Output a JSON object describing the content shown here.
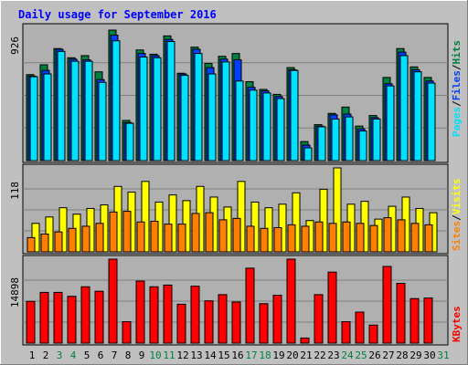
{
  "title": "Daily usage for September 2016",
  "colors": {
    "background": "#c0c0c0",
    "title": "#0000ff",
    "panel_fill": "#b0b0b0",
    "hits": "#008040",
    "files": "#0040ff",
    "pages": "#00e0ff",
    "visits": "#ffff00",
    "sites": "#ff8000",
    "kbytes": "#ff0000",
    "weekend_tick": "#008040",
    "weekday_tick": "#000000"
  },
  "chart_data": [
    {
      "type": "bar",
      "panel": "requests",
      "ymax_label": "926",
      "ymax": 926,
      "right_legend": [
        {
          "key": "pages",
          "text": "Pages"
        },
        {
          "key": "sep",
          "text": "/"
        },
        {
          "key": "files",
          "text": "Files"
        },
        {
          "key": "sep",
          "text": "/"
        },
        {
          "key": "hits",
          "text": "Hits"
        }
      ],
      "categories": [
        "1",
        "2",
        "3",
        "4",
        "5",
        "6",
        "7",
        "8",
        "9",
        "10",
        "11",
        "12",
        "13",
        "14",
        "15",
        "16",
        "17",
        "18",
        "19",
        "20",
        "21",
        "22",
        "23",
        "24",
        "25",
        "26",
        "27",
        "28",
        "29",
        "30",
        "31"
      ],
      "series": [
        {
          "key": "hits",
          "values": [
            610,
            680,
            795,
            730,
            745,
            630,
            926,
            285,
            785,
            755,
            885,
            620,
            805,
            690,
            740,
            760,
            560,
            505,
            470,
            660,
            135,
            255,
            335,
            380,
            245,
            320,
            590,
            795,
            665,
            590,
            null
          ]
        },
        {
          "key": "files",
          "values": [
            600,
            640,
            790,
            720,
            715,
            575,
            890,
            270,
            760,
            745,
            860,
            615,
            790,
            660,
            720,
            715,
            520,
            495,
            455,
            645,
            110,
            245,
            325,
            330,
            225,
            305,
            545,
            770,
            645,
            565,
            null
          ]
        },
        {
          "key": "pages",
          "values": [
            595,
            615,
            775,
            705,
            705,
            555,
            850,
            265,
            735,
            730,
            845,
            605,
            760,
            615,
            700,
            565,
            500,
            480,
            440,
            640,
            90,
            240,
            295,
            310,
            210,
            295,
            530,
            745,
            630,
            550,
            null
          ]
        }
      ]
    },
    {
      "type": "bar",
      "panel": "visits",
      "ymax_label": "118",
      "ymax": 118,
      "right_legend": [
        {
          "key": "sites",
          "text": "Sites"
        },
        {
          "key": "sep",
          "text": "/"
        },
        {
          "key": "visits",
          "text": "Visits"
        }
      ],
      "categories": [
        "1",
        "2",
        "3",
        "4",
        "5",
        "6",
        "7",
        "8",
        "9",
        "10",
        "11",
        "12",
        "13",
        "14",
        "15",
        "16",
        "17",
        "18",
        "19",
        "20",
        "21",
        "22",
        "23",
        "24",
        "25",
        "26",
        "27",
        "28",
        "29",
        "30",
        "31"
      ],
      "series": [
        {
          "key": "visits",
          "values": [
            40,
            49,
            62,
            53,
            61,
            66,
            92,
            84,
            99,
            70,
            80,
            72,
            92,
            77,
            63,
            99,
            70,
            62,
            67,
            83,
            44,
            88,
            118,
            67,
            71,
            46,
            64,
            77,
            61,
            55,
            null
          ]
        },
        {
          "key": "sites",
          "values": [
            20,
            25,
            28,
            33,
            36,
            40,
            56,
            57,
            42,
            43,
            39,
            39,
            54,
            55,
            45,
            47,
            36,
            33,
            34,
            38,
            36,
            42,
            40,
            42,
            40,
            37,
            48,
            45,
            40,
            38,
            null
          ]
        }
      ]
    },
    {
      "type": "bar",
      "panel": "kbytes",
      "ymax_label": "14898",
      "ymax": 14898,
      "right_legend": [
        {
          "key": "kbytes",
          "text": "KBytes"
        }
      ],
      "categories": [
        "1",
        "2",
        "3",
        "4",
        "5",
        "6",
        "7",
        "8",
        "9",
        "10",
        "11",
        "12",
        "13",
        "14",
        "15",
        "16",
        "17",
        "18",
        "19",
        "20",
        "21",
        "22",
        "23",
        "24",
        "25",
        "26",
        "27",
        "28",
        "29",
        "30",
        "31"
      ],
      "series": [
        {
          "key": "kbytes",
          "values": [
            7400,
            9000,
            9000,
            8300,
            10000,
            9200,
            14898,
            3800,
            11000,
            10000,
            10300,
            6900,
            10100,
            7500,
            8600,
            7300,
            13300,
            7000,
            8500,
            14898,
            900,
            8600,
            12600,
            3800,
            5500,
            3200,
            13600,
            10600,
            7900,
            8000,
            null
          ]
        }
      ]
    }
  ],
  "x_ticks": [
    {
      "label": "1",
      "weekend": false
    },
    {
      "label": "2",
      "weekend": false
    },
    {
      "label": "3",
      "weekend": true
    },
    {
      "label": "4",
      "weekend": true
    },
    {
      "label": "5",
      "weekend": false
    },
    {
      "label": "6",
      "weekend": false
    },
    {
      "label": "7",
      "weekend": false
    },
    {
      "label": "8",
      "weekend": false
    },
    {
      "label": "9",
      "weekend": false
    },
    {
      "label": "10",
      "weekend": true
    },
    {
      "label": "11",
      "weekend": true
    },
    {
      "label": "12",
      "weekend": false
    },
    {
      "label": "13",
      "weekend": false
    },
    {
      "label": "14",
      "weekend": false
    },
    {
      "label": "15",
      "weekend": false
    },
    {
      "label": "16",
      "weekend": false
    },
    {
      "label": "17",
      "weekend": true
    },
    {
      "label": "18",
      "weekend": true
    },
    {
      "label": "19",
      "weekend": false
    },
    {
      "label": "20",
      "weekend": false
    },
    {
      "label": "21",
      "weekend": false
    },
    {
      "label": "22",
      "weekend": false
    },
    {
      "label": "23",
      "weekend": false
    },
    {
      "label": "24",
      "weekend": true
    },
    {
      "label": "25",
      "weekend": true
    },
    {
      "label": "26",
      "weekend": false
    },
    {
      "label": "27",
      "weekend": false
    },
    {
      "label": "28",
      "weekend": false
    },
    {
      "label": "29",
      "weekend": false
    },
    {
      "label": "30",
      "weekend": false
    },
    {
      "label": "31",
      "weekend": true
    }
  ]
}
